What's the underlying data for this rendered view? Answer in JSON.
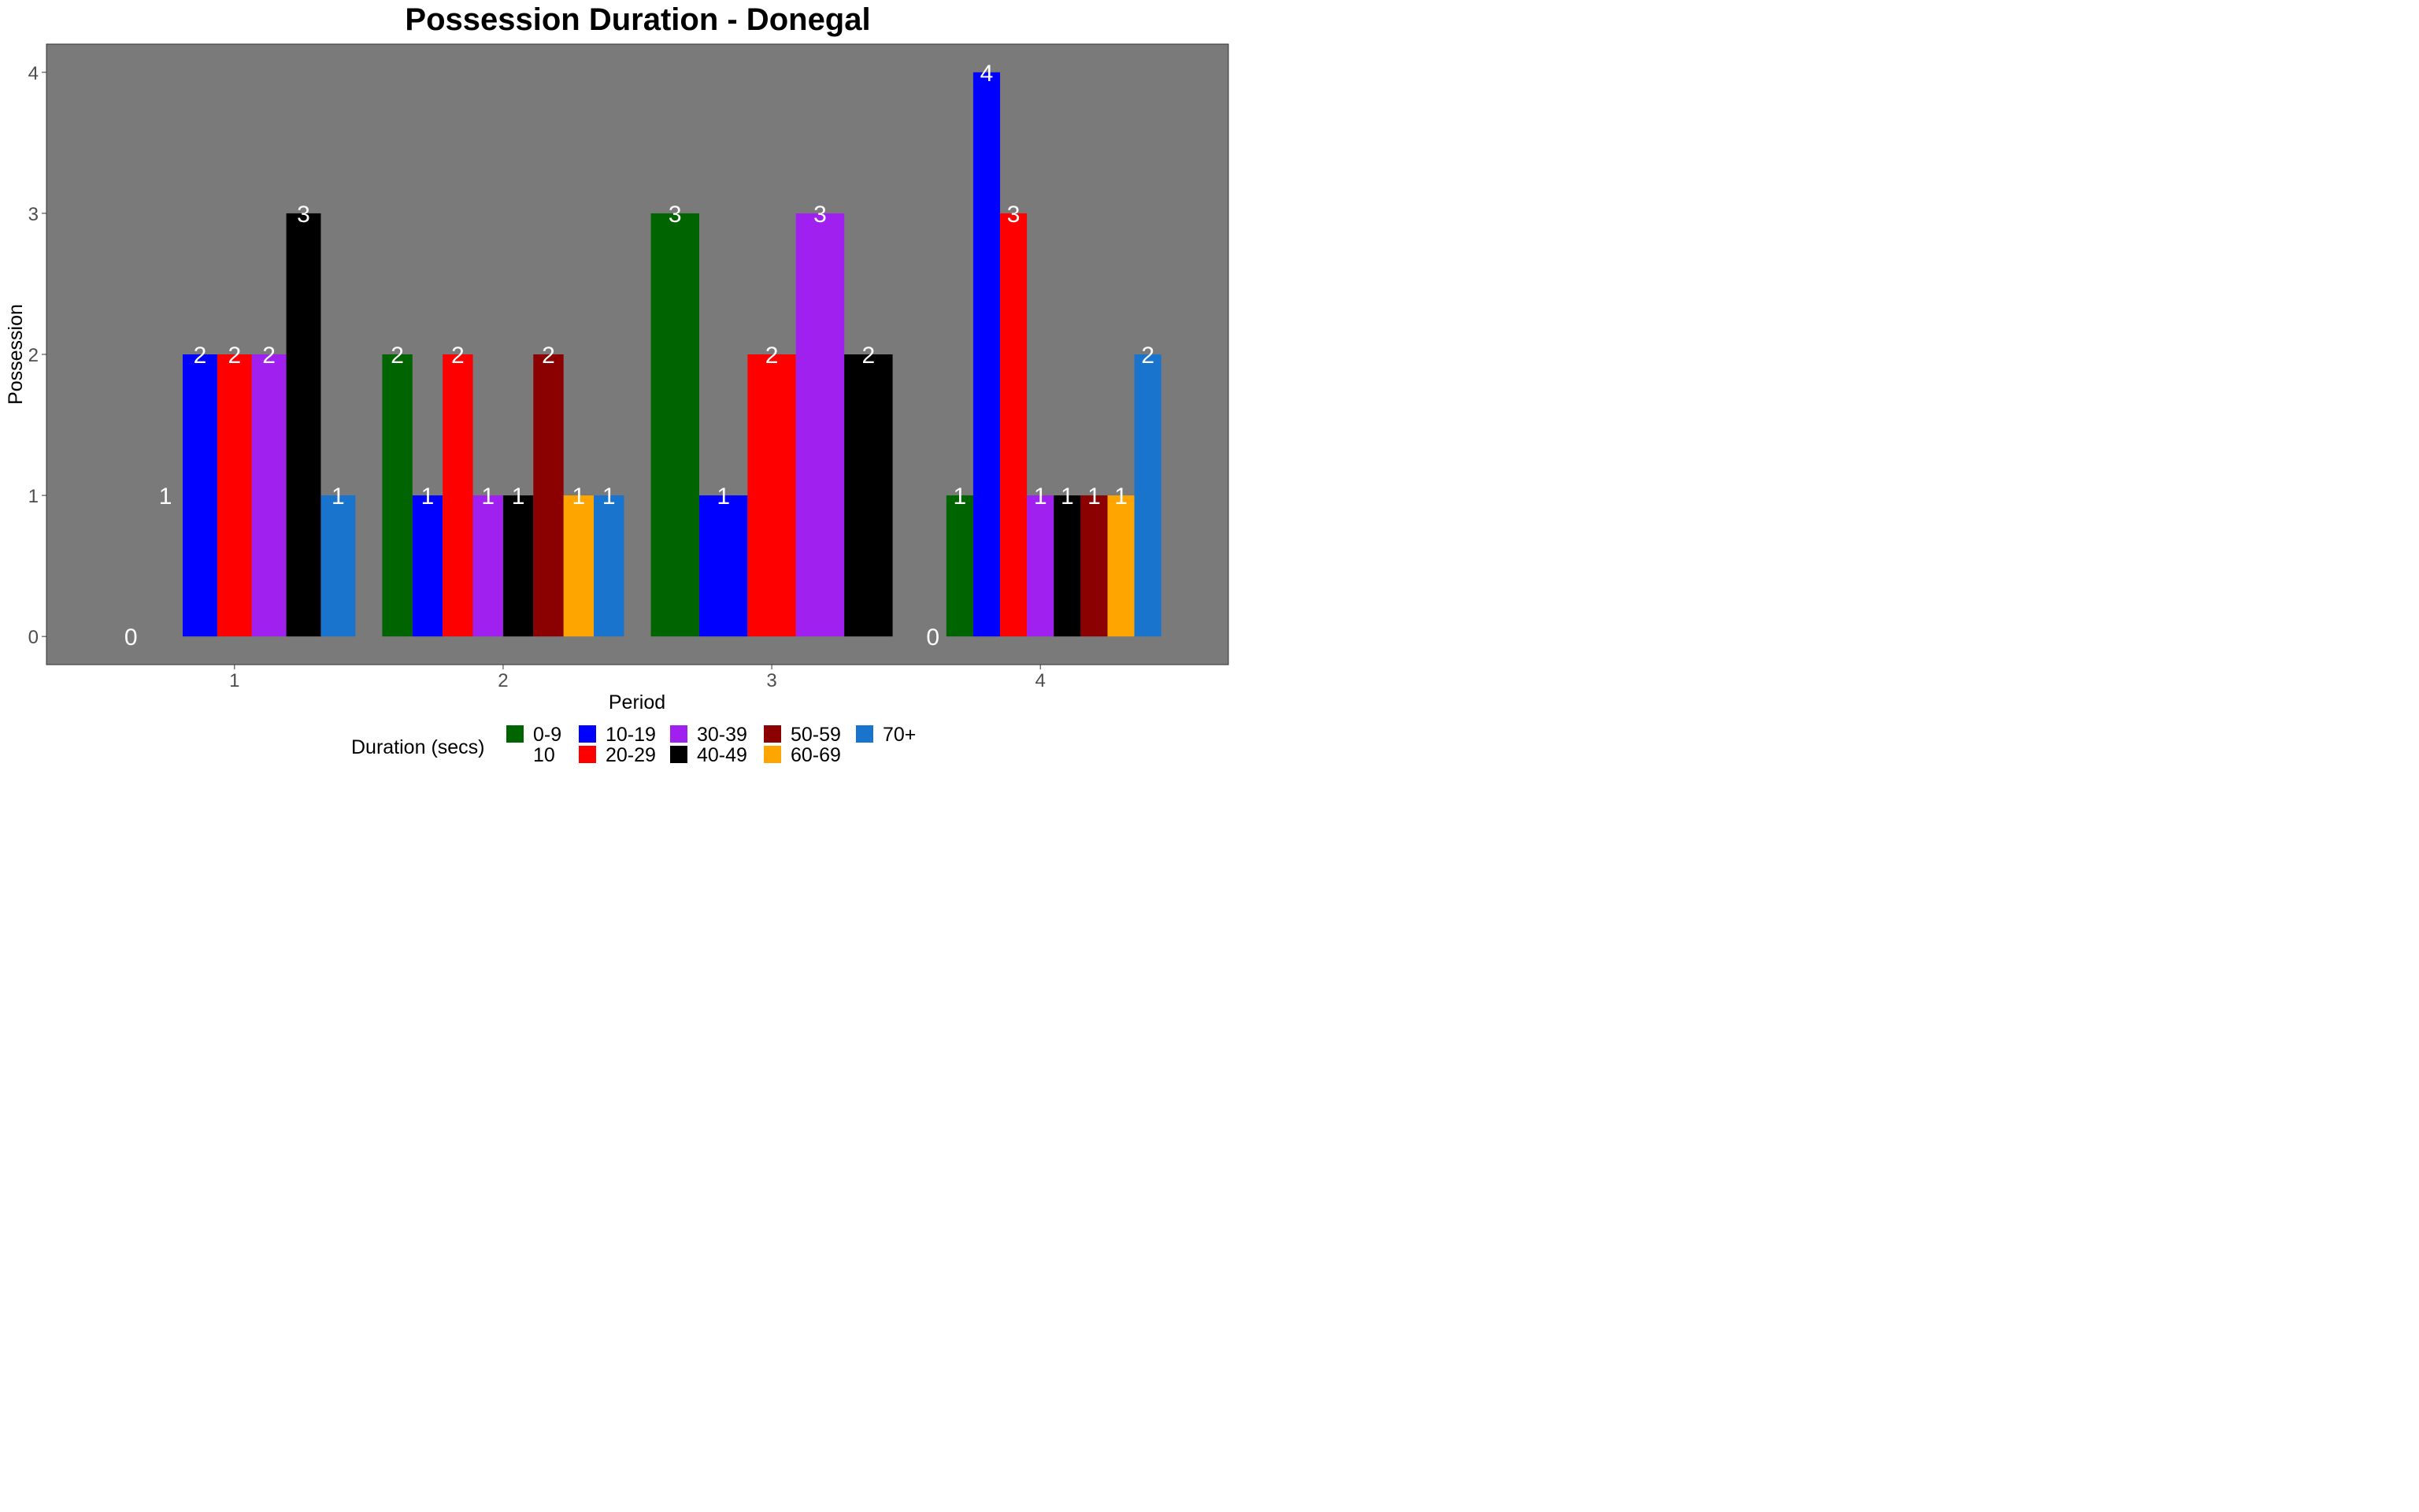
{
  "chart_data": {
    "type": "bar",
    "title": "Possession Duration - Donegal",
    "xlabel": "Period",
    "ylabel": "Possession",
    "ylim": [
      -0.2,
      4.2
    ],
    "yticks": [
      0,
      1,
      2,
      3,
      4
    ],
    "categories": [
      "1",
      "2",
      "3",
      "4"
    ],
    "legend_title": "Duration (secs)",
    "legend_position": "bottom",
    "grid": false,
    "panel_background": "#7a7a7a",
    "series": [
      {
        "name": "0-9",
        "color": "#006400"
      },
      {
        "name": "10",
        "color": "#7a7a7a"
      },
      {
        "name": "10-19",
        "color": "#0000ff"
      },
      {
        "name": "20-29",
        "color": "#ff0000"
      },
      {
        "name": "30-39",
        "color": "#a020f0"
      },
      {
        "name": "40-49",
        "color": "#000000"
      },
      {
        "name": "50-59",
        "color": "#8b0000"
      },
      {
        "name": "60-69",
        "color": "#ffa500"
      },
      {
        "name": "70+",
        "color": "#1874cd"
      }
    ],
    "groups": [
      {
        "period": "1",
        "bars": [
          {
            "series": "0-9",
            "value": 0
          },
          {
            "series": "10",
            "value": 1
          },
          {
            "series": "10-19",
            "value": 2
          },
          {
            "series": "20-29",
            "value": 2
          },
          {
            "series": "30-39",
            "value": 2
          },
          {
            "series": "40-49",
            "value": 3
          },
          {
            "series": "70+",
            "value": 1
          }
        ]
      },
      {
        "period": "2",
        "bars": [
          {
            "series": "0-9",
            "value": 2
          },
          {
            "series": "10-19",
            "value": 1
          },
          {
            "series": "20-29",
            "value": 2
          },
          {
            "series": "30-39",
            "value": 1
          },
          {
            "series": "40-49",
            "value": 1
          },
          {
            "series": "50-59",
            "value": 2
          },
          {
            "series": "60-69",
            "value": 1
          },
          {
            "series": "70+",
            "value": 1
          }
        ]
      },
      {
        "period": "3",
        "bars": [
          {
            "series": "0-9",
            "value": 3
          },
          {
            "series": "10-19",
            "value": 1
          },
          {
            "series": "20-29",
            "value": 2
          },
          {
            "series": "30-39",
            "value": 3
          },
          {
            "series": "40-49",
            "value": 2
          }
        ]
      },
      {
        "period": "4",
        "bars": [
          {
            "series": "10",
            "value": 0
          },
          {
            "series": "0-9",
            "value": 1
          },
          {
            "series": "10-19",
            "value": 4
          },
          {
            "series": "20-29",
            "value": 3
          },
          {
            "series": "30-39",
            "value": 1
          },
          {
            "series": "40-49",
            "value": 1
          },
          {
            "series": "50-59",
            "value": 1
          },
          {
            "series": "60-69",
            "value": 1
          },
          {
            "series": "70+",
            "value": 2
          }
        ]
      }
    ],
    "legend_items": [
      {
        "name": "0-9",
        "color": "#006400"
      },
      {
        "name": "10",
        "color": null
      },
      {
        "name": "10-19",
        "color": "#0000ff"
      },
      {
        "name": "20-29",
        "color": "#ff0000"
      },
      {
        "name": "30-39",
        "color": "#a020f0"
      },
      {
        "name": "40-49",
        "color": "#000000"
      },
      {
        "name": "50-59",
        "color": "#8b0000"
      },
      {
        "name": "60-69",
        "color": "#ffa500"
      },
      {
        "name": "70+",
        "color": "#1874cd"
      }
    ]
  }
}
